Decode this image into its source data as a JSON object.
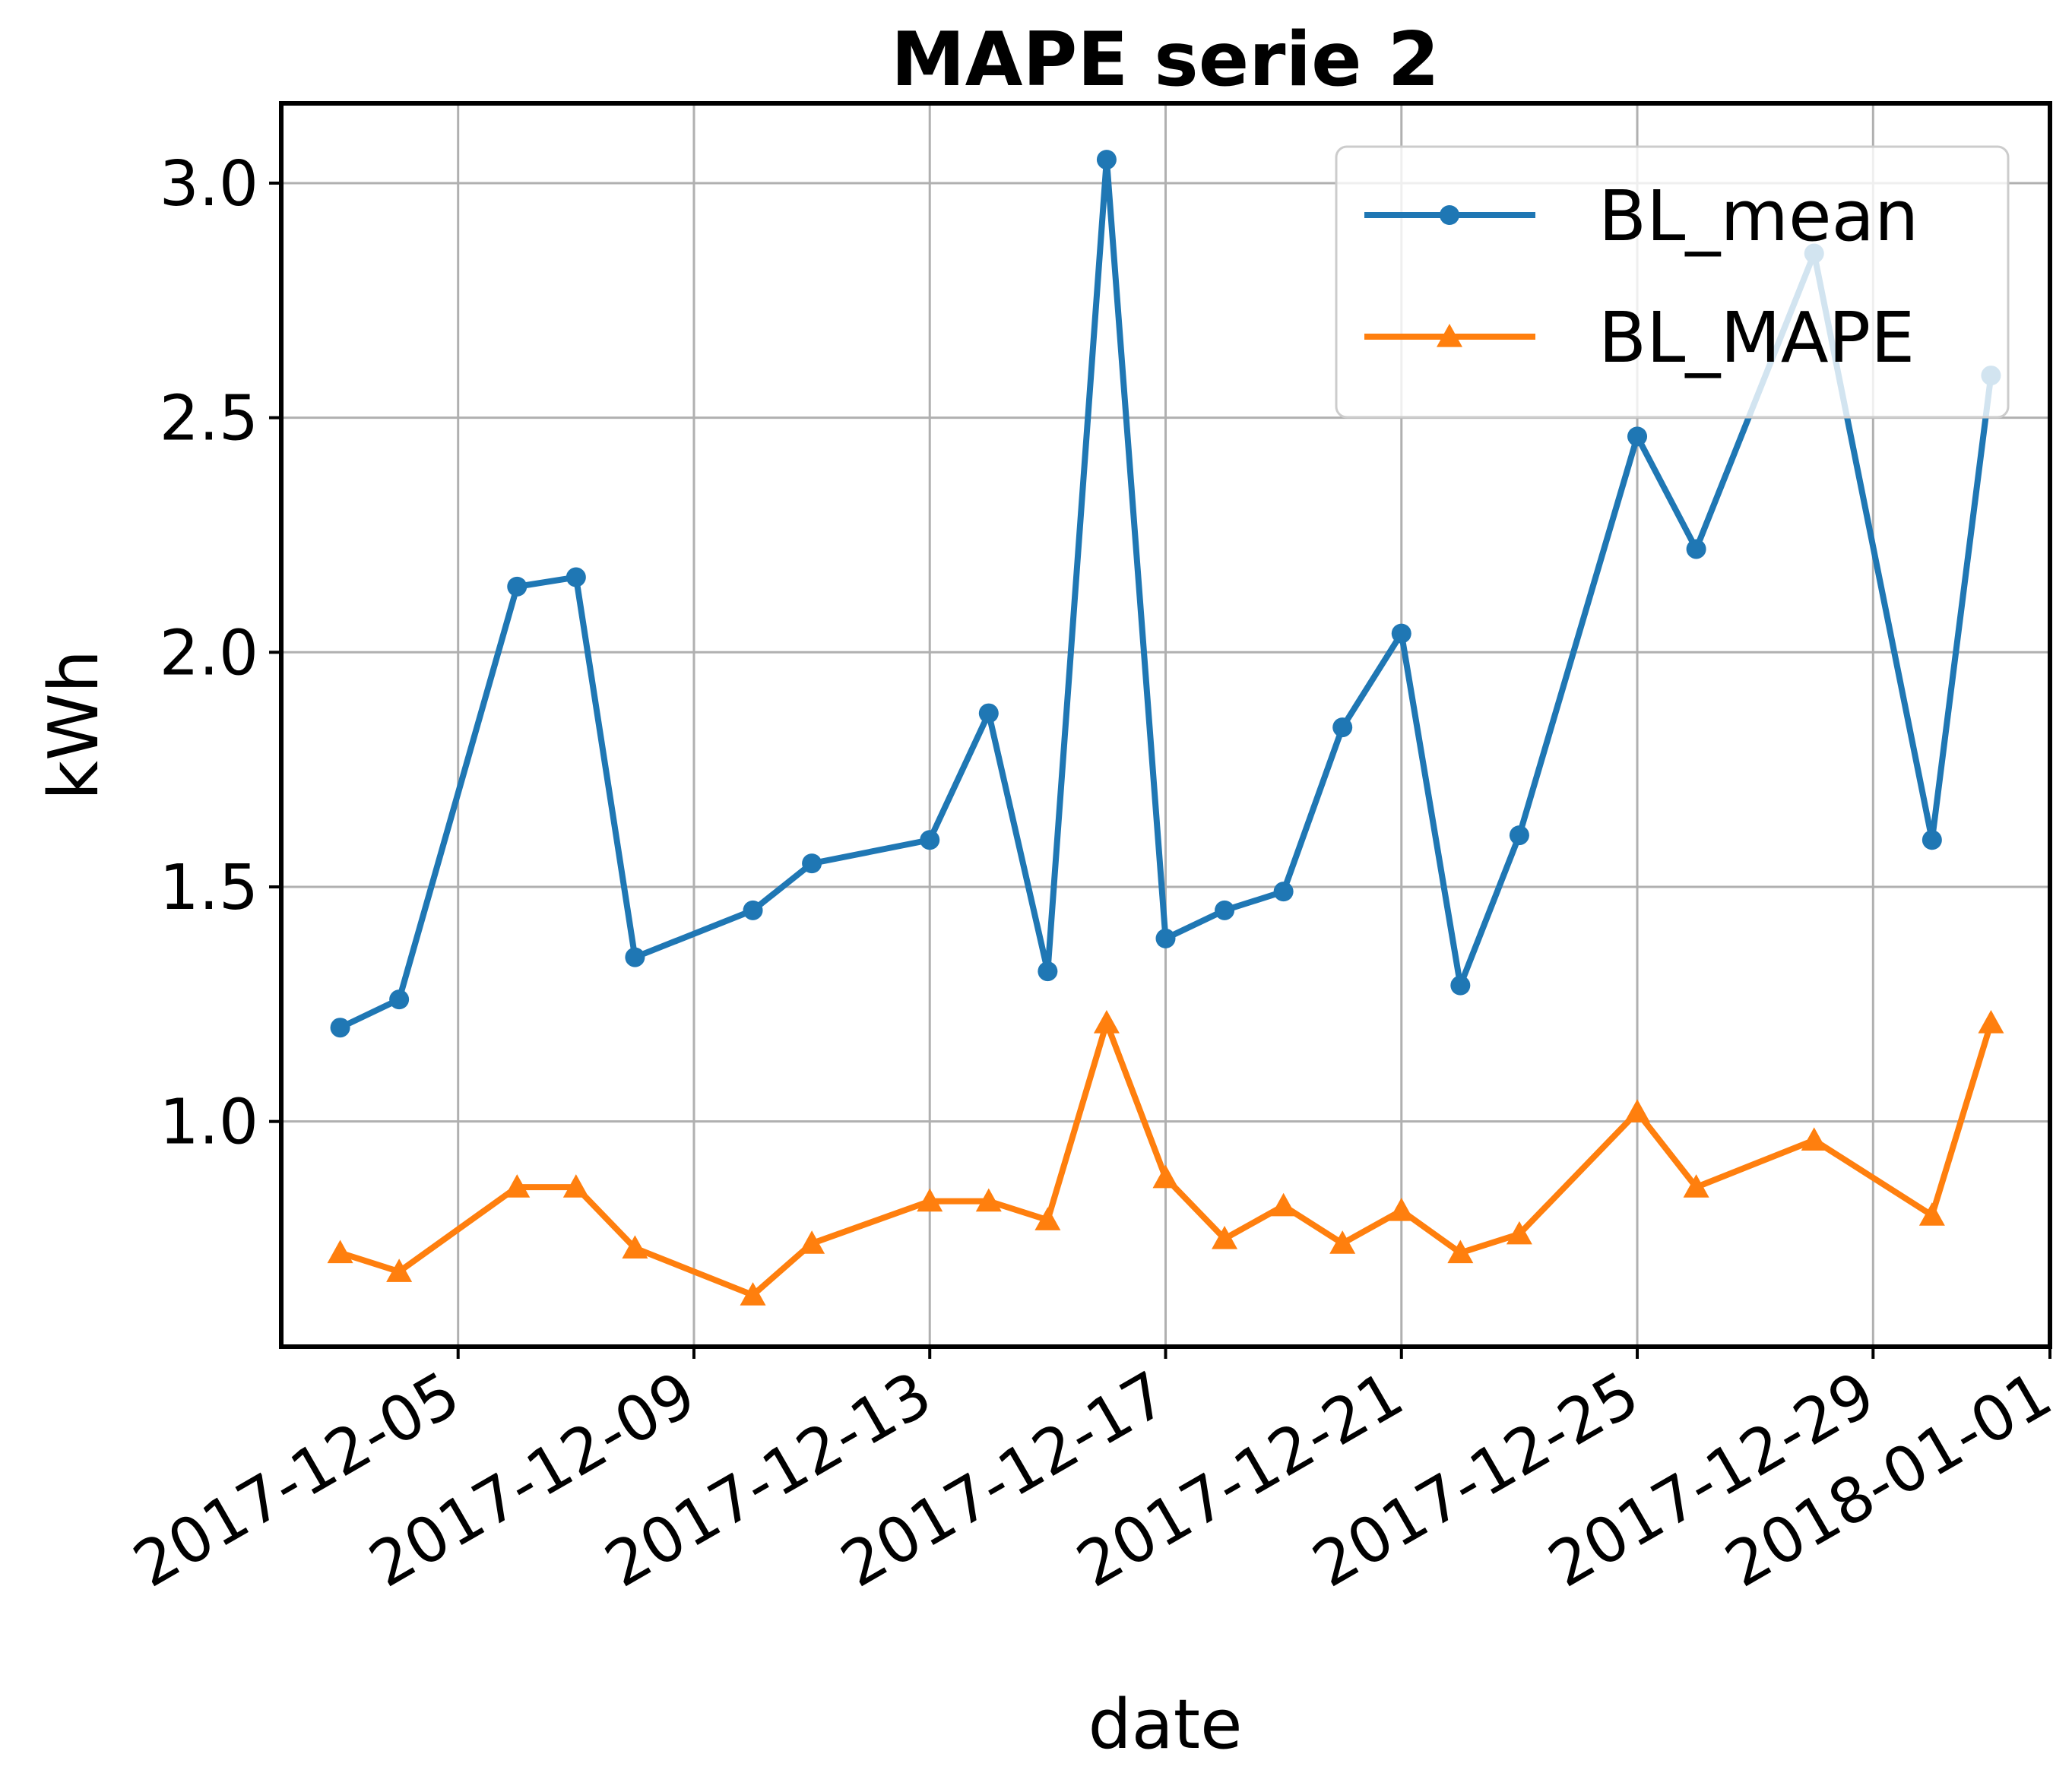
{
  "chart_data": {
    "type": "line",
    "title": "MAPE serie 2",
    "xlabel": "date",
    "ylabel": "kWh",
    "x_scale": "date",
    "xlim": [
      "2017-12-02",
      "2018-01-01"
    ],
    "ylim": [
      0.52,
      3.17
    ],
    "x_ticks": [
      "2017-12-05",
      "2017-12-09",
      "2017-12-13",
      "2017-12-17",
      "2017-12-21",
      "2017-12-25",
      "2017-12-29",
      "2018-01-01"
    ],
    "y_ticks": [
      "1.0",
      "1.5",
      "2.0",
      "2.5",
      "3.0"
    ],
    "y_tick_values": [
      1.0,
      1.5,
      2.0,
      2.5,
      3.0
    ],
    "grid": true,
    "legend_position": "top-right",
    "series": [
      {
        "name": "BL_mean",
        "color": "#1f77b4",
        "marker": "circle",
        "points": [
          {
            "x": "2017-12-03",
            "y": 1.2
          },
          {
            "x": "2017-12-04",
            "y": 1.26
          },
          {
            "x": "2017-12-06",
            "y": 2.14
          },
          {
            "x": "2017-12-07",
            "y": 2.16
          },
          {
            "x": "2017-12-08",
            "y": 1.35
          },
          {
            "x": "2017-12-10",
            "y": 1.45
          },
          {
            "x": "2017-12-11",
            "y": 1.55
          },
          {
            "x": "2017-12-13",
            "y": 1.6
          },
          {
            "x": "2017-12-14",
            "y": 1.87
          },
          {
            "x": "2017-12-15",
            "y": 1.32
          },
          {
            "x": "2017-12-16",
            "y": 3.05
          },
          {
            "x": "2017-12-17",
            "y": 1.39
          },
          {
            "x": "2017-12-18",
            "y": 1.45
          },
          {
            "x": "2017-12-19",
            "y": 1.49
          },
          {
            "x": "2017-12-20",
            "y": 1.84
          },
          {
            "x": "2017-12-21",
            "y": 2.04
          },
          {
            "x": "2017-12-22",
            "y": 1.29
          },
          {
            "x": "2017-12-23",
            "y": 1.61
          },
          {
            "x": "2017-12-25",
            "y": 2.46
          },
          {
            "x": "2017-12-26",
            "y": 2.22
          },
          {
            "x": "2017-12-28",
            "y": 2.85
          },
          {
            "x": "2017-12-30",
            "y": 1.6
          },
          {
            "x": "2017-12-31",
            "y": 2.59
          }
        ]
      },
      {
        "name": "BL_MAPE",
        "color": "#ff7f0e",
        "marker": "triangle",
        "points": [
          {
            "x": "2017-12-03",
            "y": 0.72
          },
          {
            "x": "2017-12-04",
            "y": 0.68
          },
          {
            "x": "2017-12-06",
            "y": 0.86
          },
          {
            "x": "2017-12-07",
            "y": 0.86
          },
          {
            "x": "2017-12-08",
            "y": 0.73
          },
          {
            "x": "2017-12-10",
            "y": 0.63
          },
          {
            "x": "2017-12-11",
            "y": 0.74
          },
          {
            "x": "2017-12-13",
            "y": 0.83
          },
          {
            "x": "2017-12-14",
            "y": 0.83
          },
          {
            "x": "2017-12-15",
            "y": 0.79
          },
          {
            "x": "2017-12-16",
            "y": 1.21
          },
          {
            "x": "2017-12-17",
            "y": 0.88
          },
          {
            "x": "2017-12-18",
            "y": 0.75
          },
          {
            "x": "2017-12-19",
            "y": 0.82
          },
          {
            "x": "2017-12-20",
            "y": 0.74
          },
          {
            "x": "2017-12-21",
            "y": 0.81
          },
          {
            "x": "2017-12-22",
            "y": 0.72
          },
          {
            "x": "2017-12-23",
            "y": 0.76
          },
          {
            "x": "2017-12-25",
            "y": 1.02
          },
          {
            "x": "2017-12-26",
            "y": 0.86
          },
          {
            "x": "2017-12-28",
            "y": 0.96
          },
          {
            "x": "2017-12-30",
            "y": 0.8
          },
          {
            "x": "2017-12-31",
            "y": 1.21
          }
        ]
      }
    ]
  }
}
